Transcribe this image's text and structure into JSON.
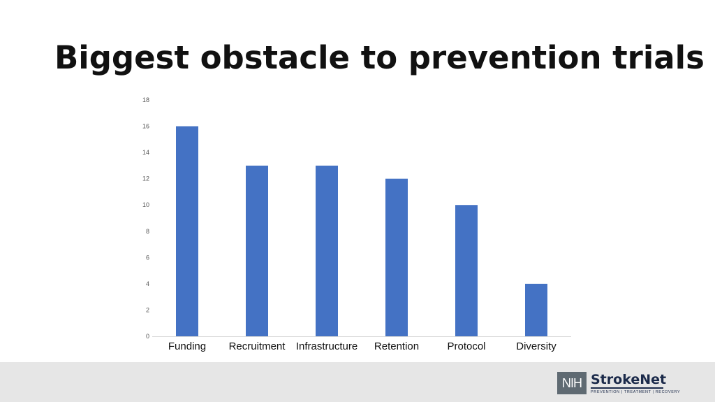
{
  "slide": {
    "title": "Biggest obstacle to prevention trials"
  },
  "chart_data": {
    "type": "bar",
    "title": "",
    "xlabel": "",
    "ylabel": "",
    "categories": [
      "Funding",
      "Recruitment",
      "Infrastructure",
      "Retention",
      "Protocol",
      "Diversity"
    ],
    "values": [
      16,
      13,
      13,
      12,
      10,
      4
    ],
    "ylim": [
      0,
      18
    ],
    "yticks": [
      0,
      2,
      4,
      6,
      8,
      10,
      12,
      14,
      16,
      18
    ],
    "grid": false,
    "legend": "none",
    "bar_color": "#4472c4"
  },
  "footer": {
    "logo_mark": "NIH",
    "logo_name": "StrokeNet",
    "logo_tagline": "PREVENTION | TREATMENT | RECOVERY",
    "background": "#e6e6e6"
  }
}
